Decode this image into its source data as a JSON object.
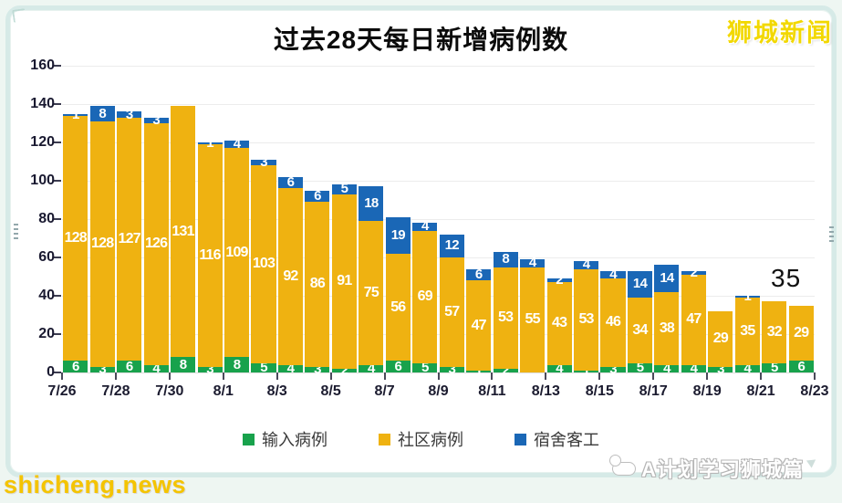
{
  "page": {
    "brand_top_right": "狮城新闻",
    "watermark_bottom_left": "shicheng.news",
    "watermark_bottom_right": "A计划学习狮城篇",
    "annotation_last_total": "35"
  },
  "colors": {
    "imported_green": "#18A24C",
    "community_yellow": "#EFB211",
    "dormitory_blue": "#1A67B6",
    "frame_border": "#D6EAE7",
    "background": "#EEF6F2",
    "brand_yellow": "#F2D800"
  },
  "chart_data": {
    "type": "bar",
    "stacked": true,
    "title": "过去28天每日新增病例数",
    "n_bars": 28,
    "x_tick_labels": [
      "7/26",
      "7/28",
      "7/30",
      "8/1",
      "8/3",
      "8/5",
      "8/7",
      "8/9",
      "8/11",
      "8/13",
      "8/15",
      "8/17",
      "8/19",
      "8/21",
      "8/23"
    ],
    "y_ticks": [
      0,
      20,
      40,
      60,
      80,
      100,
      120,
      140,
      160
    ],
    "ylim": [
      0,
      160
    ],
    "grid": true,
    "legend_position": "bottom",
    "annotation": {
      "text": "35",
      "meaning": "total of last bar (29+6)"
    },
    "series": [
      {
        "name": "输入病例",
        "color": "#18A24C",
        "values": [
          6,
          3,
          6,
          4,
          8,
          3,
          8,
          5,
          4,
          3,
          2,
          4,
          6,
          5,
          3,
          1,
          2,
          0,
          4,
          1,
          3,
          5,
          4,
          4,
          3,
          4,
          5,
          6
        ]
      },
      {
        "name": "社区病例",
        "color": "#EFB211",
        "values": [
          128,
          128,
          127,
          126,
          131,
          116,
          109,
          103,
          92,
          86,
          91,
          75,
          56,
          69,
          57,
          47,
          53,
          55,
          43,
          53,
          46,
          34,
          38,
          47,
          29,
          35,
          32,
          29
        ]
      },
      {
        "name": "宿舍客工",
        "color": "#1A67B6",
        "values": [
          1,
          8,
          3,
          3,
          0,
          1,
          4,
          3,
          6,
          6,
          5,
          18,
          19,
          4,
          12,
          6,
          8,
          4,
          2,
          4,
          4,
          14,
          14,
          2,
          0,
          1,
          0,
          0
        ]
      }
    ],
    "totals": [
      135,
      139,
      136,
      133,
      139,
      120,
      121,
      111,
      102,
      95,
      98,
      97,
      81,
      78,
      72,
      54,
      63,
      59,
      49,
      58,
      53,
      53,
      56,
      53,
      32,
      40,
      37,
      35
    ]
  }
}
